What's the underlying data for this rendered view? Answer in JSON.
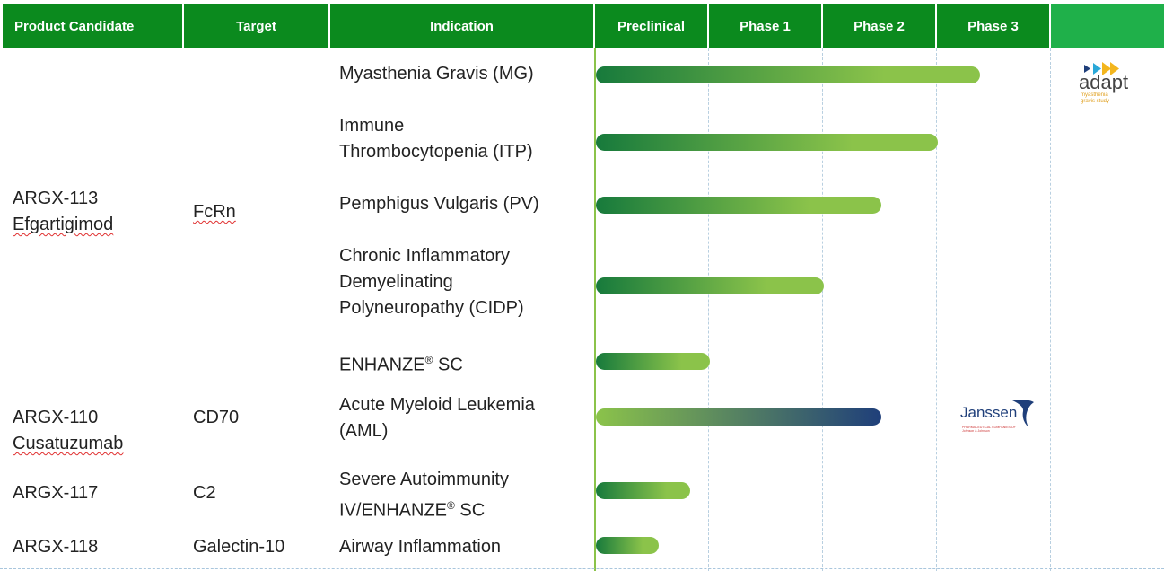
{
  "colors": {
    "header_green": "#0b8a1e",
    "header_last": "#1fb04a",
    "bar_dark": "#177a3c",
    "bar_light": "#8bc34a",
    "bar_navy": "#1f3f7a"
  },
  "header": {
    "product": "Product Candidate",
    "target": "Target",
    "indication": "Indication",
    "preclinical": "Preclinical",
    "phase1": "Phase 1",
    "phase2": "Phase 2",
    "phase3": "Phase 3",
    "extra": ""
  },
  "candidates": [
    {
      "name_l1": "ARGX-113",
      "name_l2": "Efgartigimod",
      "target": "FcRn"
    },
    {
      "name_l1": "ARGX-110",
      "name_l2": "Cusatuzumab",
      "target": "CD70"
    },
    {
      "name_l1": "ARGX-117",
      "name_l2": "",
      "target": "C2"
    },
    {
      "name_l1": "ARGX-118",
      "name_l2": "",
      "target": "Galectin-10"
    }
  ],
  "indications": {
    "mg": "Myasthenia Gravis (MG)",
    "itp_l1": "Immune",
    "itp_l2": "Thrombocytopenia (ITP)",
    "pv": "Pemphigus Vulgaris (PV)",
    "cidp_l1": "Chronic Inflammatory",
    "cidp_l2": "Demyelinating",
    "cidp_l3": "Polyneuropathy (CIDP)",
    "enh": "ENHANZE",
    "enh_sc": " SC",
    "aml_l1": "Acute Myeloid Leukemia",
    "aml_l2": "(AML)",
    "sa_l1": "Severe Autoimmunity",
    "sa_l2": "IV/ENHANZE",
    "sa_sc": " SC",
    "airway": "Airway Inflammation",
    "reg": "®"
  },
  "chart_data": {
    "type": "bar",
    "categories": [
      "Preclinical",
      "Phase 1",
      "Phase 2",
      "Phase 3"
    ],
    "xlim": [
      0,
      4
    ],
    "series": [
      {
        "indication": "Myasthenia Gravis (MG)",
        "value": 3.37,
        "style": "green"
      },
      {
        "indication": "Immune Thrombocytopenia (ITP)",
        "value": 3.0,
        "style": "green"
      },
      {
        "indication": "Pemphigus Vulgaris (PV)",
        "value": 2.5,
        "style": "green"
      },
      {
        "indication": "Chronic Inflammatory Demyelinating Polyneuropathy (CIDP)",
        "value": 2.0,
        "style": "green"
      },
      {
        "indication": "ENHANZE® SC",
        "value": 1.0,
        "style": "green"
      },
      {
        "indication": "Acute Myeloid Leukemia (AML)",
        "value": 2.5,
        "style": "navy"
      },
      {
        "indication": "Severe Autoimmunity IV/ENHANZE® SC",
        "value": 0.83,
        "style": "green"
      },
      {
        "indication": "Airway Inflammation",
        "value": 0.55,
        "style": "green"
      }
    ]
  },
  "partners": {
    "adapt_word": "adapt",
    "adapt_sub1": "myasthenia",
    "adapt_sub2": "gravis study",
    "janssen_word": "Janssen",
    "janssen_sub": "PHARMACEUTICAL COMPANIES OF Johnson & Johnson"
  }
}
